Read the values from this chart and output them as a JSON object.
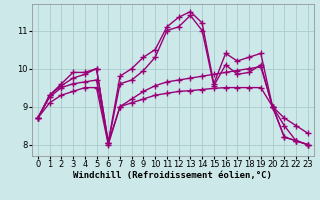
{
  "bg_color": "#cce8e8",
  "grid_color": "#aacccc",
  "line_color": "#990077",
  "marker": "+",
  "markersize": 4,
  "linewidth": 1.0,
  "xlabel": "Windchill (Refroidissement éolien,°C)",
  "xlabel_fontsize": 6.5,
  "tick_fontsize": 6,
  "ylim": [
    7.7,
    11.7
  ],
  "xlim": [
    -0.5,
    23.5
  ],
  "yticks": [
    8,
    9,
    10,
    11
  ],
  "xticks": [
    0,
    1,
    2,
    3,
    4,
    5,
    6,
    7,
    8,
    9,
    10,
    11,
    12,
    13,
    14,
    15,
    16,
    17,
    18,
    19,
    20,
    21,
    22,
    23
  ],
  "series": [
    {
      "x": [
        0,
        1,
        2,
        3,
        4,
        5,
        6,
        7,
        8,
        9,
        10,
        11,
        12,
        13,
        14,
        15,
        16,
        17,
        18,
        19,
        20,
        21,
        22,
        23
      ],
      "y": [
        8.7,
        9.3,
        9.6,
        9.9,
        9.9,
        10.0,
        8.05,
        9.8,
        10.0,
        10.3,
        10.5,
        11.1,
        11.35,
        11.5,
        11.2,
        9.6,
        10.4,
        10.2,
        10.3,
        10.4,
        9.0,
        8.2,
        8.1,
        8.0
      ]
    },
    {
      "x": [
        0,
        1,
        2,
        3,
        4,
        5,
        6,
        7,
        8,
        9,
        10,
        11,
        12,
        13,
        14,
        15,
        16,
        17,
        18,
        19,
        20,
        21,
        22,
        23
      ],
      "y": [
        8.7,
        9.3,
        9.55,
        9.75,
        9.85,
        10.0,
        8.05,
        9.6,
        9.7,
        9.95,
        10.3,
        11.0,
        11.1,
        11.4,
        11.0,
        9.55,
        10.1,
        9.85,
        9.9,
        10.1,
        9.0,
        8.2,
        8.1,
        8.0
      ]
    },
    {
      "x": [
        0,
        1,
        2,
        3,
        4,
        5,
        6,
        7,
        8,
        9,
        10,
        11,
        12,
        13,
        14,
        15,
        16,
        17,
        18,
        19,
        20,
        21,
        22,
        23
      ],
      "y": [
        8.7,
        9.25,
        9.5,
        9.6,
        9.65,
        9.7,
        8.05,
        9.0,
        9.2,
        9.4,
        9.55,
        9.65,
        9.7,
        9.75,
        9.8,
        9.85,
        9.9,
        9.95,
        10.0,
        10.05,
        9.0,
        8.7,
        8.5,
        8.3
      ]
    },
    {
      "x": [
        0,
        1,
        2,
        3,
        4,
        5,
        6,
        7,
        8,
        9,
        10,
        11,
        12,
        13,
        14,
        15,
        16,
        17,
        18,
        19,
        20,
        21,
        22,
        23
      ],
      "y": [
        8.7,
        9.1,
        9.3,
        9.4,
        9.5,
        9.5,
        8.0,
        9.0,
        9.1,
        9.2,
        9.3,
        9.35,
        9.4,
        9.42,
        9.45,
        9.48,
        9.5,
        9.5,
        9.5,
        9.5,
        9.0,
        8.5,
        8.1,
        8.0
      ]
    }
  ]
}
